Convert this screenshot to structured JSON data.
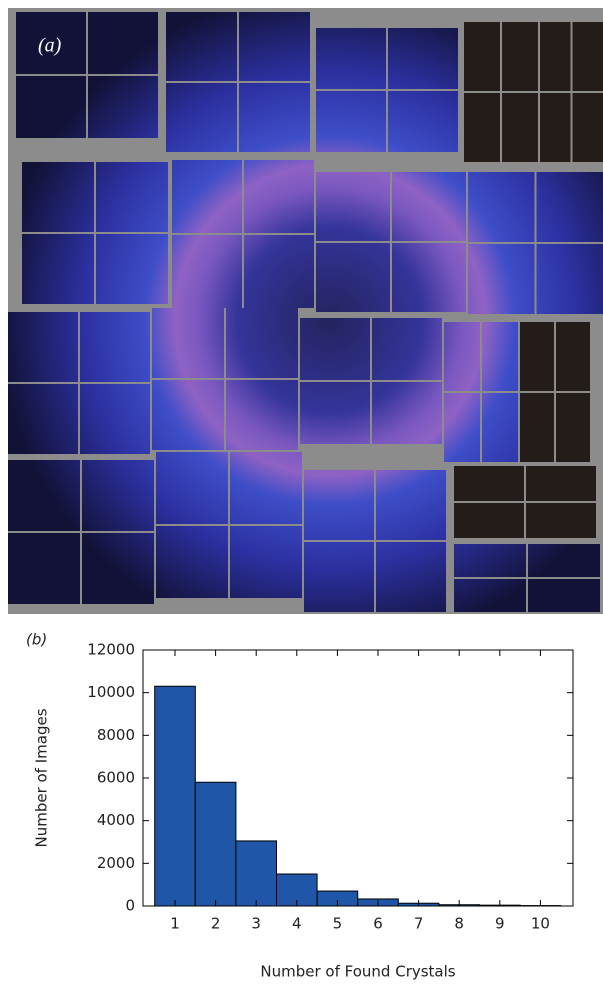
{
  "figure_a": {
    "label": "(a)"
  },
  "chart_data": {
    "type": "bar",
    "panel_label": "(b)",
    "x_label": "Number of Found Crystals",
    "y_label": "Number of Images",
    "categories": [
      "1",
      "2",
      "3",
      "4",
      "5",
      "6",
      "7",
      "8",
      "9",
      "10"
    ],
    "values": [
      10300,
      5800,
      3050,
      1500,
      700,
      330,
      130,
      60,
      40,
      20
    ],
    "color": "#1f56a8",
    "ylim": [
      0,
      12000
    ],
    "yticks": [
      0,
      2000,
      4000,
      6000,
      8000,
      10000,
      12000
    ]
  }
}
